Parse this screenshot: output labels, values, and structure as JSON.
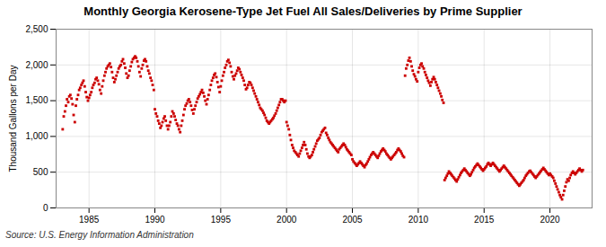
{
  "chart_data": {
    "type": "scatter",
    "title": "Monthly Georgia Kerosene-Type Jet Fuel All Sales/Deliveries by Prime Supplier",
    "ylabel": "Thousand Gallons per Day",
    "source": "Source: U.S. Energy Information Administration",
    "color": "#cc0000",
    "marker": "square",
    "grid": true,
    "xlim": [
      1982.5,
      2023.2
    ],
    "ylim": [
      0,
      2500
    ],
    "xticks": [
      1985,
      1990,
      1995,
      2000,
      2005,
      2010,
      2015,
      2020
    ],
    "yticks": [
      0,
      500,
      {
        "value": 1000,
        "label": "1,000"
      },
      {
        "value": 1500,
        "label": "1,500"
      },
      {
        "value": 2000,
        "label": "2,000"
      },
      {
        "value": 2500,
        "label": "2,500"
      }
    ],
    "x": [
      1983.0,
      1983.08,
      1983.17,
      1983.25,
      1983.33,
      1983.42,
      1983.5,
      1983.58,
      1983.67,
      1983.75,
      1983.83,
      1983.92,
      1984.0,
      1984.08,
      1984.17,
      1984.25,
      1984.33,
      1984.42,
      1984.5,
      1984.58,
      1984.67,
      1984.75,
      1984.83,
      1984.92,
      1985.0,
      1985.08,
      1985.17,
      1985.25,
      1985.33,
      1985.42,
      1985.5,
      1985.58,
      1985.67,
      1985.75,
      1985.83,
      1985.92,
      1986.0,
      1986.08,
      1986.17,
      1986.25,
      1986.33,
      1986.42,
      1986.5,
      1986.58,
      1986.67,
      1986.75,
      1986.83,
      1986.92,
      1987.0,
      1987.08,
      1987.17,
      1987.25,
      1987.33,
      1987.42,
      1987.5,
      1987.58,
      1987.67,
      1987.75,
      1987.83,
      1987.92,
      1988.0,
      1988.08,
      1988.17,
      1988.25,
      1988.33,
      1988.42,
      1988.5,
      1988.58,
      1988.67,
      1988.75,
      1988.83,
      1988.92,
      1989.0,
      1989.08,
      1989.17,
      1989.25,
      1989.33,
      1989.42,
      1989.5,
      1989.58,
      1989.67,
      1989.75,
      1989.83,
      1989.92,
      1990.0,
      1990.08,
      1990.17,
      1990.25,
      1990.33,
      1990.42,
      1990.5,
      1990.58,
      1990.67,
      1990.75,
      1990.83,
      1990.92,
      1991.0,
      1991.08,
      1991.17,
      1991.25,
      1991.33,
      1991.42,
      1991.5,
      1991.58,
      1991.67,
      1991.75,
      1991.83,
      1991.92,
      1992.0,
      1992.08,
      1992.17,
      1992.25,
      1992.33,
      1992.42,
      1992.5,
      1992.58,
      1992.67,
      1992.75,
      1992.83,
      1992.92,
      1993.0,
      1993.08,
      1993.17,
      1993.25,
      1993.33,
      1993.42,
      1993.5,
      1993.58,
      1993.67,
      1993.75,
      1993.83,
      1993.92,
      1994.0,
      1994.08,
      1994.17,
      1994.25,
      1994.33,
      1994.42,
      1994.5,
      1994.58,
      1994.67,
      1994.75,
      1994.83,
      1994.92,
      1995.0,
      1995.08,
      1995.17,
      1995.25,
      1995.33,
      1995.42,
      1995.5,
      1995.58,
      1995.67,
      1995.75,
      1995.83,
      1995.92,
      1996.0,
      1996.08,
      1996.17,
      1996.25,
      1996.33,
      1996.42,
      1996.5,
      1996.58,
      1996.67,
      1996.75,
      1996.83,
      1996.92,
      1997.0,
      1997.08,
      1997.17,
      1997.25,
      1997.33,
      1997.42,
      1997.5,
      1997.58,
      1997.67,
      1997.75,
      1997.83,
      1997.92,
      1998.0,
      1998.08,
      1998.17,
      1998.25,
      1998.33,
      1998.42,
      1998.5,
      1998.58,
      1998.67,
      1998.75,
      1998.83,
      1998.92,
      1999.0,
      1999.08,
      1999.17,
      1999.25,
      1999.33,
      1999.42,
      1999.5,
      1999.58,
      1999.67,
      1999.75,
      1999.83,
      1999.92,
      2000.0,
      2000.08,
      2000.17,
      2000.25,
      2000.33,
      2000.42,
      2000.5,
      2000.58,
      2000.67,
      2000.75,
      2000.83,
      2000.92,
      2001.0,
      2001.08,
      2001.17,
      2001.25,
      2001.33,
      2001.42,
      2001.5,
      2001.58,
      2001.67,
      2001.75,
      2001.83,
      2001.92,
      2002.0,
      2002.08,
      2002.17,
      2002.25,
      2002.33,
      2002.42,
      2002.5,
      2002.58,
      2002.67,
      2002.75,
      2002.83,
      2002.92,
      2003.0,
      2003.08,
      2003.17,
      2003.25,
      2003.33,
      2003.42,
      2003.5,
      2003.58,
      2003.67,
      2003.75,
      2003.83,
      2003.92,
      2004.0,
      2004.08,
      2004.17,
      2004.25,
      2004.33,
      2004.42,
      2004.5,
      2004.58,
      2004.67,
      2004.75,
      2004.83,
      2004.92,
      2005.0,
      2005.08,
      2005.17,
      2005.25,
      2005.33,
      2005.42,
      2005.5,
      2005.58,
      2005.67,
      2005.75,
      2005.83,
      2005.92,
      2006.0,
      2006.08,
      2006.17,
      2006.25,
      2006.33,
      2006.42,
      2006.5,
      2006.58,
      2006.67,
      2006.75,
      2006.83,
      2006.92,
      2007.0,
      2007.08,
      2007.17,
      2007.25,
      2007.33,
      2007.42,
      2007.5,
      2007.58,
      2007.67,
      2007.75,
      2007.83,
      2007.92,
      2008.0,
      2008.08,
      2008.17,
      2008.25,
      2008.33,
      2008.42,
      2008.5,
      2008.58,
      2008.67,
      2008.75,
      2008.83,
      2008.92,
      2009.0,
      2009.08,
      2009.17,
      2009.25,
      2009.33,
      2009.42,
      2009.5,
      2009.58,
      2009.67,
      2009.75,
      2009.83,
      2009.92,
      2010.0,
      2010.08,
      2010.17,
      2010.25,
      2010.33,
      2010.42,
      2010.5,
      2010.58,
      2010.67,
      2010.75,
      2010.83,
      2010.92,
      2011.0,
      2011.08,
      2011.17,
      2011.25,
      2011.33,
      2011.42,
      2011.5,
      2011.58,
      2011.67,
      2011.75,
      2011.83,
      2011.92,
      2012.0,
      2012.08,
      2012.17,
      2012.25,
      2012.33,
      2012.42,
      2012.5,
      2012.58,
      2012.67,
      2012.75,
      2012.83,
      2012.92,
      2013.0,
      2013.08,
      2013.17,
      2013.25,
      2013.33,
      2013.42,
      2013.5,
      2013.58,
      2013.67,
      2013.75,
      2013.83,
      2013.92,
      2014.0,
      2014.08,
      2014.17,
      2014.25,
      2014.33,
      2014.42,
      2014.5,
      2014.58,
      2014.67,
      2014.75,
      2014.83,
      2014.92,
      2015.0,
      2015.08,
      2015.17,
      2015.25,
      2015.33,
      2015.42,
      2015.5,
      2015.58,
      2015.67,
      2015.75,
      2015.83,
      2015.92,
      2016.0,
      2016.08,
      2016.17,
      2016.25,
      2016.33,
      2016.42,
      2016.5,
      2016.58,
      2016.67,
      2016.75,
      2016.83,
      2016.92,
      2017.0,
      2017.08,
      2017.17,
      2017.25,
      2017.33,
      2017.42,
      2017.5,
      2017.58,
      2017.67,
      2017.75,
      2017.83,
      2017.92,
      2018.0,
      2018.08,
      2018.17,
      2018.25,
      2018.33,
      2018.42,
      2018.5,
      2018.58,
      2018.67,
      2018.75,
      2018.83,
      2018.92,
      2019.0,
      2019.08,
      2019.17,
      2019.25,
      2019.33,
      2019.42,
      2019.5,
      2019.58,
      2019.67,
      2019.75,
      2019.83,
      2019.92,
      2020.0,
      2020.08,
      2020.17,
      2020.25,
      2020.33,
      2020.42,
      2020.5,
      2020.58,
      2020.67,
      2020.75,
      2020.83,
      2020.92,
      2021.0,
      2021.08,
      2021.17,
      2021.25,
      2021.33,
      2021.42,
      2021.5,
      2021.58,
      2021.67,
      2021.75,
      2021.83,
      2021.92,
      2022.0,
      2022.08,
      2022.17,
      2022.25,
      2022.33,
      2022.42,
      2022.5
    ],
    "values": [
      1100,
      1280,
      1350,
      1430,
      1520,
      1480,
      1560,
      1580,
      1530,
      1450,
      1300,
      1200,
      1430,
      1520,
      1580,
      1650,
      1680,
      1720,
      1750,
      1780,
      1700,
      1620,
      1550,
      1500,
      1540,
      1580,
      1620,
      1680,
      1720,
      1750,
      1800,
      1820,
      1780,
      1730,
      1650,
      1600,
      1700,
      1780,
      1850,
      1900,
      1950,
      1980,
      2000,
      2020,
      1970,
      1900,
      1820,
      1760,
      1800,
      1850,
      1900,
      1950,
      1980,
      2000,
      2050,
      2080,
      2020,
      1960,
      1880,
      1820,
      1850,
      1920,
      1980,
      2040,
      2080,
      2100,
      2120,
      2100,
      2050,
      1980,
      1900,
      1840,
      1950,
      2000,
      2060,
      2080,
      2050,
      1980,
      1920,
      1880,
      1820,
      1780,
      1720,
      1650,
      1380,
      1320,
      1280,
      1220,
      1180,
      1120,
      1150,
      1200,
      1250,
      1280,
      1220,
      1150,
      1100,
      1150,
      1200,
      1280,
      1350,
      1320,
      1280,
      1230,
      1180,
      1150,
      1100,
      1060,
      1150,
      1220,
      1300,
      1380,
      1430,
      1460,
      1500,
      1520,
      1480,
      1430,
      1370,
      1320,
      1380,
      1430,
      1480,
      1530,
      1560,
      1590,
      1620,
      1650,
      1610,
      1560,
      1500,
      1450,
      1520,
      1580,
      1650,
      1720,
      1780,
      1820,
      1860,
      1880,
      1830,
      1760,
      1690,
      1620,
      1700,
      1780,
      1850,
      1900,
      1960,
      2000,
      2050,
      2070,
      2030,
      1980,
      1900,
      1840,
      1800,
      1850,
      1880,
      1920,
      1960,
      1940,
      1900,
      1860,
      1820,
      1780,
      1720,
      1660,
      1680,
      1720,
      1760,
      1750,
      1720,
      1680,
      1640,
      1600,
      1560,
      1520,
      1480,
      1440,
      1400,
      1380,
      1360,
      1330,
      1300,
      1260,
      1220,
      1200,
      1180,
      1200,
      1220,
      1240,
      1260,
      1290,
      1320,
      1360,
      1400,
      1440,
      1480,
      1520,
      1520,
      1500,
      1480,
      1500,
      1200,
      1150,
      1100,
      1020,
      950,
      880,
      840,
      800,
      780,
      760,
      740,
      720,
      760,
      800,
      840,
      880,
      920,
      880,
      820,
      760,
      720,
      700,
      720,
      740,
      780,
      820,
      860,
      900,
      940,
      960,
      980,
      1020,
      1060,
      1080,
      1100,
      1120,
      1050,
      1020,
      980,
      950,
      920,
      900,
      880,
      860,
      840,
      820,
      800,
      780,
      820,
      840,
      860,
      880,
      900,
      880,
      850,
      820,
      800,
      780,
      760,
      740,
      680,
      650,
      630,
      610,
      590,
      610,
      630,
      650,
      630,
      610,
      590,
      570,
      600,
      620,
      650,
      680,
      710,
      740,
      760,
      780,
      760,
      740,
      720,
      700,
      730,
      760,
      790,
      810,
      830,
      810,
      790,
      760,
      740,
      720,
      700,
      680,
      700,
      720,
      740,
      760,
      780,
      810,
      830,
      810,
      790,
      760,
      730,
      710,
      1850,
      1950,
      2000,
      2060,
      2100,
      2050,
      1980,
      1920,
      1870,
      1840,
      1800,
      1770,
      1900,
      1960,
      2000,
      2020,
      1980,
      1950,
      1900,
      1860,
      1820,
      1780,
      1750,
      1710,
      1760,
      1800,
      1830,
      1800,
      1760,
      1720,
      1680,
      1640,
      1600,
      1560,
      1510,
      1470,
      390,
      420,
      450,
      480,
      510,
      490,
      470,
      450,
      430,
      410,
      390,
      370,
      400,
      430,
      460,
      490,
      510,
      530,
      550,
      530,
      510,
      490,
      470,
      450,
      470,
      500,
      530,
      560,
      580,
      600,
      620,
      600,
      580,
      560,
      540,
      520,
      540,
      560,
      580,
      610,
      630,
      610,
      590,
      610,
      630,
      610,
      590,
      570,
      550,
      530,
      510,
      530,
      550,
      570,
      590,
      570,
      550,
      530,
      510,
      490,
      470,
      450,
      430,
      410,
      390,
      370,
      350,
      330,
      310,
      330,
      350,
      370,
      390,
      420,
      450,
      470,
      490,
      510,
      520,
      500,
      480,
      460,
      440,
      420,
      440,
      460,
      480,
      500,
      520,
      540,
      560,
      540,
      520,
      500,
      480,
      460,
      480,
      460,
      440,
      420,
      380,
      340,
      300,
      260,
      220,
      180,
      150,
      120,
      180,
      240,
      300,
      360,
      400,
      380,
      420,
      460,
      490,
      510,
      490,
      470,
      490,
      510,
      530,
      550,
      530,
      510,
      530
    ]
  }
}
